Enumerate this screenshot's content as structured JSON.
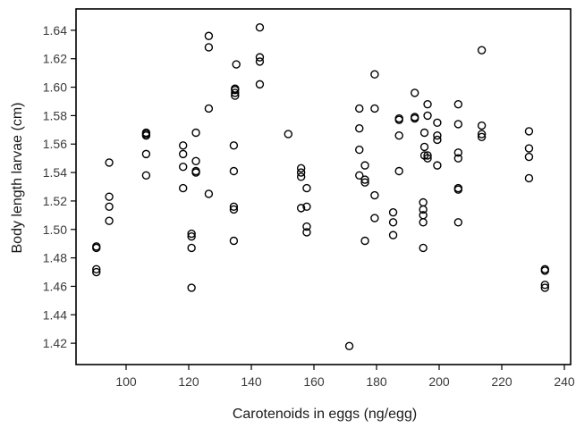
{
  "chart_data": {
    "type": "scatter",
    "xlabel": "Carotenoids in eggs (ng/egg)",
    "ylabel": "Body length larvae (cm)",
    "xlim": [
      84,
      242
    ],
    "ylim": [
      1.405,
      1.655
    ],
    "xticks": [
      100,
      120,
      140,
      160,
      180,
      200,
      220,
      240
    ],
    "yticks": [
      1.42,
      1.44,
      1.46,
      1.48,
      1.5,
      1.52,
      1.54,
      1.56,
      1.58,
      1.6,
      1.62,
      1.64
    ],
    "ytick_labels": [
      "1.42",
      "1.44",
      "1.46",
      "1.48",
      "1.50",
      "1.52",
      "1.54",
      "1.56",
      "1.58",
      "1.60",
      "1.62",
      "1.64"
    ],
    "grid": false,
    "marker": "open-circle",
    "series": [
      {
        "x": [
          90.5,
          90.5,
          90.5,
          90.5,
          94.6,
          94.6,
          94.6,
          94.6,
          106.4,
          106.4,
          106.4,
          106.4,
          106.4,
          118.2,
          118.2,
          118.2,
          118.2,
          120.9,
          120.9,
          120.9,
          120.9,
          122.3,
          122.3,
          122.3,
          122.3,
          126.4,
          126.4,
          126.4,
          126.4,
          134.4,
          134.4,
          134.4,
          134.4,
          134.4,
          134.8,
          134.8,
          134.8,
          134.8,
          135.2,
          142.7,
          142.7,
          142.7,
          142.7,
          151.8,
          155.9,
          155.9,
          155.9,
          155.9,
          157.7,
          157.7,
          157.7,
          157.7,
          171.3,
          174.5,
          174.5,
          174.5,
          174.5,
          176.3,
          176.3,
          176.3,
          176.3,
          179.4,
          179.4,
          179.4,
          179.4,
          185.3,
          185.3,
          185.3,
          187.2,
          187.2,
          187.2,
          187.2,
          192.2,
          192.2,
          192.2,
          194.9,
          194.9,
          194.9,
          194.9,
          194.9,
          195.3,
          195.3,
          195.3,
          196.3,
          196.3,
          196.3,
          196.3,
          199.4,
          199.4,
          199.4,
          199.4,
          206.1,
          206.1,
          206.1,
          206.1,
          206.1,
          206.1,
          206.1,
          213.6,
          213.6,
          213.6,
          213.6,
          228.7,
          228.7,
          228.7,
          228.7,
          233.8,
          233.8,
          233.8,
          233.8
        ],
        "y": [
          1.47,
          1.472,
          1.487,
          1.488,
          1.506,
          1.516,
          1.523,
          1.547,
          1.538,
          1.553,
          1.566,
          1.567,
          1.568,
          1.529,
          1.544,
          1.553,
          1.559,
          1.459,
          1.487,
          1.495,
          1.497,
          1.54,
          1.541,
          1.548,
          1.568,
          1.525,
          1.585,
          1.628,
          1.636,
          1.492,
          1.514,
          1.516,
          1.541,
          1.559,
          1.594,
          1.596,
          1.598,
          1.599,
          1.616,
          1.602,
          1.618,
          1.621,
          1.642,
          1.567,
          1.515,
          1.537,
          1.54,
          1.543,
          1.498,
          1.502,
          1.516,
          1.529,
          1.418,
          1.538,
          1.556,
          1.571,
          1.585,
          1.492,
          1.533,
          1.535,
          1.545,
          1.508,
          1.524,
          1.585,
          1.609,
          1.496,
          1.505,
          1.512,
          1.541,
          1.566,
          1.577,
          1.578,
          1.578,
          1.579,
          1.596,
          1.487,
          1.505,
          1.51,
          1.514,
          1.519,
          1.552,
          1.558,
          1.568,
          1.55,
          1.552,
          1.58,
          1.588,
          1.545,
          1.563,
          1.566,
          1.575,
          1.505,
          1.528,
          1.529,
          1.55,
          1.554,
          1.574,
          1.588,
          1.565,
          1.567,
          1.573,
          1.626,
          1.536,
          1.551,
          1.557,
          1.569,
          1.459,
          1.461,
          1.471,
          1.472
        ]
      }
    ]
  }
}
